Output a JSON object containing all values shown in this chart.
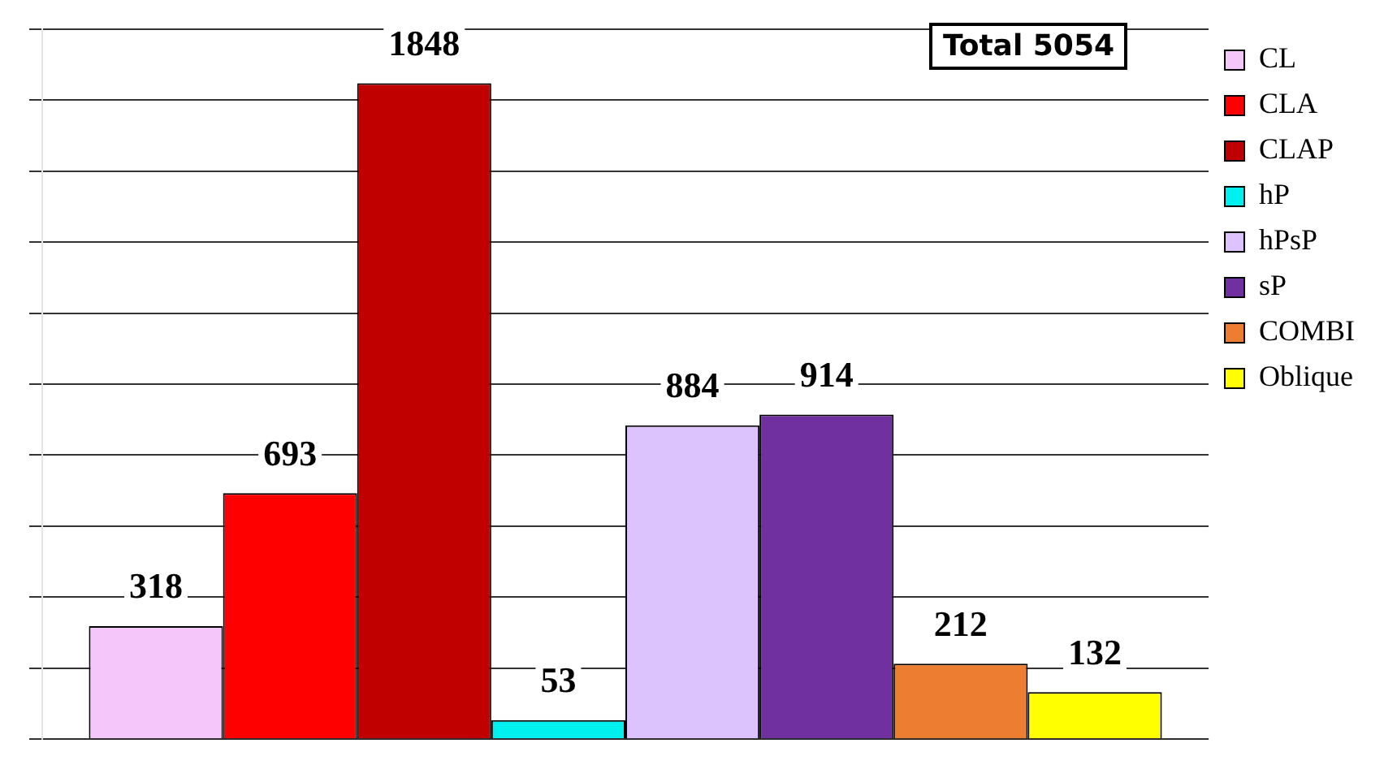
{
  "chart_data": {
    "type": "bar",
    "categories": [
      null
    ],
    "series": [
      {
        "name": "CL",
        "color": "#f5c6f9",
        "values": [
          318
        ]
      },
      {
        "name": "CLA",
        "color": "#ff0000",
        "values": [
          693
        ]
      },
      {
        "name": "CLAP",
        "color": "#c00000",
        "values": [
          1848
        ]
      },
      {
        "name": "hP",
        "color": "#00f0f0",
        "values": [
          53
        ]
      },
      {
        "name": "hPsP",
        "color": "#dcc3fd",
        "values": [
          884
        ]
      },
      {
        "name": "sP",
        "color": "#7030a0",
        "values": [
          914
        ]
      },
      {
        "name": "COMBI",
        "color": "#ed7d31",
        "values": [
          212
        ]
      },
      {
        "name": "Oblique",
        "color": "#ffff00",
        "values": [
          132
        ]
      }
    ],
    "tick_labels": false,
    "grid": "y",
    "legend": "top right",
    "data_labels": true,
    "annotations": [
      "Total 5054"
    ]
  }
}
